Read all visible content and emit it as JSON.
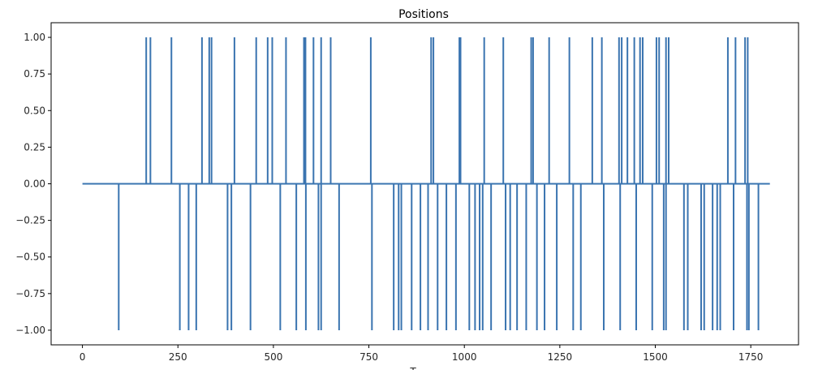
{
  "chart_data": {
    "type": "line",
    "title": "Positions",
    "xlabel": "T",
    "ylabel": "",
    "xlim": [
      -82,
      1875
    ],
    "ylim": [
      -1.1,
      1.1
    ],
    "x_ticks": [
      0,
      250,
      500,
      750,
      1000,
      1250,
      1500,
      1750
    ],
    "x_tick_labels": [
      "0",
      "250",
      "500",
      "750",
      "1000",
      "1250",
      "1500",
      "1750"
    ],
    "y_ticks": [
      1.0,
      0.75,
      0.5,
      0.25,
      0.0,
      -0.25,
      -0.5,
      -0.75,
      -1.0
    ],
    "y_tick_labels": [
      "1.00",
      "0.75",
      "0.50",
      "0.25",
      "0.00",
      "−0.25",
      "−0.50",
      "−0.75",
      "−1.00"
    ],
    "grid": false,
    "legend": "none",
    "color": "#3a74b0",
    "series": [
      {
        "x_start": 0,
        "x_end": 1800,
        "baseline": 0,
        "positive_spikes_x": [
          167,
          178,
          233,
          313,
          332,
          338,
          398,
          455,
          485,
          497,
          533,
          580,
          584,
          605,
          625,
          650,
          755,
          913,
          919,
          987,
          990,
          1052,
          1102,
          1175,
          1180,
          1222,
          1275,
          1335,
          1360,
          1405,
          1412,
          1427,
          1445,
          1460,
          1467,
          1503,
          1510,
          1528,
          1535,
          1690,
          1710,
          1735,
          1742
        ],
        "negative_spikes_x": [
          95,
          255,
          278,
          298,
          380,
          390,
          440,
          518,
          560,
          585,
          618,
          625,
          672,
          758,
          815,
          828,
          835,
          862,
          885,
          905,
          930,
          953,
          978,
          1013,
          1028,
          1040,
          1048,
          1070,
          1108,
          1120,
          1138,
          1162,
          1190,
          1210,
          1242,
          1285,
          1305,
          1365,
          1408,
          1450,
          1492,
          1522,
          1528,
          1575,
          1585,
          1620,
          1628,
          1650,
          1662,
          1670,
          1705,
          1740,
          1745,
          1770
        ]
      }
    ]
  }
}
